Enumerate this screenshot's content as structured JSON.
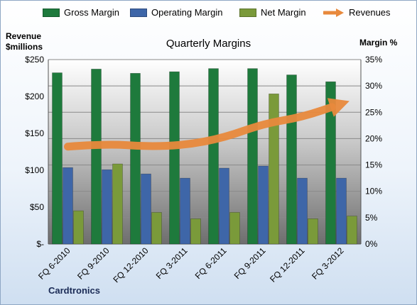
{
  "chart_data": {
    "type": "bar",
    "title": "Quarterly Margins",
    "ylabel_left_line1": "Revenue",
    "ylabel_left_line2": "$millions",
    "ylabel_right": "Margin %",
    "company": "Cardtronics",
    "categories": [
      "FQ 6-2010",
      "FQ 9-2010",
      "FQ 12-2010",
      "FQ 3-2011",
      "FQ 6-2011",
      "FQ 9-2011",
      "FQ 12-2011",
      "FQ 3-2012"
    ],
    "y_left_ticks": [
      "$-",
      "$50",
      "$100",
      "$150",
      "$200",
      "$250"
    ],
    "y_left_range": [
      0,
      250
    ],
    "y_right_ticks": [
      "0%",
      "5%",
      "10%",
      "15%",
      "20%",
      "25%",
      "30%",
      "35%"
    ],
    "y_right_range": [
      0,
      35
    ],
    "series": [
      {
        "name": "Gross Margin",
        "kind": "bar",
        "axis": "right",
        "color": "#1e7a3c",
        "values": [
          32.5,
          33.2,
          32.4,
          32.7,
          33.3,
          33.3,
          32.1,
          30.8
        ]
      },
      {
        "name": "Operating Margin",
        "kind": "bar",
        "axis": "right",
        "color": "#3e66a8",
        "values": [
          14.5,
          14.1,
          13.3,
          12.5,
          14.4,
          14.8,
          12.5,
          12.5
        ]
      },
      {
        "name": "Net Margin",
        "kind": "bar",
        "axis": "right",
        "color": "#7a9a3a",
        "values": [
          6.3,
          15.2,
          6.0,
          4.8,
          6.0,
          28.5,
          4.8,
          5.3
        ]
      },
      {
        "name": "Revenues",
        "kind": "line",
        "axis": "left",
        "color": "#e8893c",
        "values": [
          132,
          136,
          132,
          134,
          144,
          163,
          172,
          190
        ]
      }
    ],
    "legend_position": "top",
    "grid": true
  }
}
